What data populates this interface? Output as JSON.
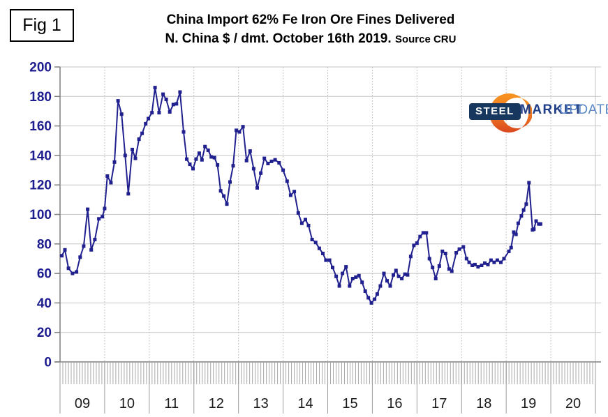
{
  "fig_label": "Fig 1",
  "title_line1": "China Import 62% Fe Iron Ore Fines Delivered",
  "title_line2": "N. China $ / dmt. October 16th 2019.",
  "title_source": "Source CRU",
  "logo": {
    "steel": "STEEL",
    "market": "MARKET",
    "update": "UPDATE"
  },
  "colors": {
    "series": "#20208e",
    "ytick_label": "#1c1c8e",
    "xtick_label": "#1a1a1a",
    "grid_h": "#c4c4c4",
    "grid_v_dotted": "#b4b4b4",
    "axis": "#7f7f7f",
    "logo_navy": "#17375e",
    "logo_blue": "#1f3c87",
    "logo_lightblue": "#5b87c5",
    "logo_orange_top": "#f7941e",
    "logo_orange_bottom": "#d9481e"
  },
  "chart_data": {
    "type": "line",
    "title": "China Import 62% Fe Iron Ore Fines Delivered N. China $ / dmt.",
    "as_of": "October 16th 2019",
    "source": "CRU",
    "xlabel": "",
    "ylabel": "$ / dmt",
    "ylim": [
      0,
      200
    ],
    "ytick_step": 20,
    "yticks": [
      "200",
      "180",
      "160",
      "140",
      "120",
      "100",
      "80",
      "60",
      "40",
      "20",
      "0"
    ],
    "xticks": [
      "09",
      "10",
      "11",
      "12",
      "13",
      "14",
      "15",
      "16",
      "17",
      "18",
      "19",
      "20"
    ],
    "xrange_years": [
      2009,
      2021
    ],
    "grid": {
      "horizontal": "solid",
      "vertical": "dotted"
    },
    "legend_position": "none",
    "series": [
      {
        "name": "China import 62% Fe iron ore fines, $/dmt",
        "color": "#20208e",
        "marker": "square",
        "points": [
          [
            2009.04,
            72
          ],
          [
            2009.11,
            76
          ],
          [
            2009.19,
            63.5
          ],
          [
            2009.28,
            60
          ],
          [
            2009.37,
            61
          ],
          [
            2009.45,
            71
          ],
          [
            2009.53,
            78.5
          ],
          [
            2009.62,
            103.5
          ],
          [
            2009.7,
            76
          ],
          [
            2009.78,
            83
          ],
          [
            2009.87,
            97
          ],
          [
            2009.95,
            98.5
          ],
          [
            2010.0,
            104
          ],
          [
            2010.06,
            126
          ],
          [
            2010.14,
            121.5
          ],
          [
            2010.22,
            135.5
          ],
          [
            2010.3,
            177
          ],
          [
            2010.38,
            168
          ],
          [
            2010.46,
            140
          ],
          [
            2010.53,
            114
          ],
          [
            2010.62,
            144
          ],
          [
            2010.69,
            138
          ],
          [
            2010.77,
            151
          ],
          [
            2010.84,
            155
          ],
          [
            2010.92,
            161.5
          ],
          [
            2010.98,
            165
          ],
          [
            2011.06,
            169
          ],
          [
            2011.13,
            186
          ],
          [
            2011.22,
            169
          ],
          [
            2011.31,
            181.5
          ],
          [
            2011.38,
            178
          ],
          [
            2011.46,
            169.5
          ],
          [
            2011.54,
            174.5
          ],
          [
            2011.61,
            175
          ],
          [
            2011.69,
            183
          ],
          [
            2011.77,
            156
          ],
          [
            2011.84,
            137.5
          ],
          [
            2011.91,
            134
          ],
          [
            2011.98,
            131
          ],
          [
            2012.05,
            137.5
          ],
          [
            2012.12,
            141.5
          ],
          [
            2012.18,
            137
          ],
          [
            2012.25,
            146
          ],
          [
            2012.32,
            143.5
          ],
          [
            2012.39,
            139
          ],
          [
            2012.46,
            138.5
          ],
          [
            2012.53,
            133.5
          ],
          [
            2012.6,
            116
          ],
          [
            2012.67,
            112.5
          ],
          [
            2012.74,
            107
          ],
          [
            2012.81,
            122
          ],
          [
            2012.88,
            133
          ],
          [
            2012.95,
            157
          ],
          [
            2013.02,
            156
          ],
          [
            2013.1,
            159.5
          ],
          [
            2013.18,
            136.5
          ],
          [
            2013.26,
            143
          ],
          [
            2013.34,
            131
          ],
          [
            2013.42,
            118
          ],
          [
            2013.5,
            128
          ],
          [
            2013.58,
            138
          ],
          [
            2013.66,
            134.5
          ],
          [
            2013.74,
            136
          ],
          [
            2013.82,
            137
          ],
          [
            2013.91,
            135
          ],
          [
            2014.0,
            130
          ],
          [
            2014.09,
            122.5
          ],
          [
            2014.17,
            113
          ],
          [
            2014.25,
            115.5
          ],
          [
            2014.34,
            101
          ],
          [
            2014.42,
            94
          ],
          [
            2014.5,
            96.5
          ],
          [
            2014.57,
            92.5
          ],
          [
            2014.65,
            83
          ],
          [
            2014.73,
            81
          ],
          [
            2014.81,
            77
          ],
          [
            2014.89,
            73.5
          ],
          [
            2014.96,
            69
          ],
          [
            2015.04,
            69
          ],
          [
            2015.11,
            64
          ],
          [
            2015.19,
            58
          ],
          [
            2015.26,
            51.5
          ],
          [
            2015.33,
            60
          ],
          [
            2015.41,
            64.5
          ],
          [
            2015.49,
            51.5
          ],
          [
            2015.56,
            56.5
          ],
          [
            2015.63,
            57.5
          ],
          [
            2015.7,
            58.5
          ],
          [
            2015.77,
            54
          ],
          [
            2015.84,
            48
          ],
          [
            2015.91,
            43.5
          ],
          [
            2015.98,
            40
          ],
          [
            2016.05,
            42.5
          ],
          [
            2016.11,
            46
          ],
          [
            2016.18,
            51.5
          ],
          [
            2016.26,
            60
          ],
          [
            2016.33,
            55
          ],
          [
            2016.4,
            51.5
          ],
          [
            2016.47,
            59
          ],
          [
            2016.53,
            62
          ],
          [
            2016.59,
            58
          ],
          [
            2016.66,
            56.5
          ],
          [
            2016.73,
            59.5
          ],
          [
            2016.79,
            59
          ],
          [
            2016.86,
            71.5
          ],
          [
            2016.93,
            79
          ],
          [
            2017.0,
            80.5
          ],
          [
            2017.07,
            85
          ],
          [
            2017.14,
            87.5
          ],
          [
            2017.21,
            87.5
          ],
          [
            2017.28,
            70
          ],
          [
            2017.35,
            64
          ],
          [
            2017.42,
            56.5
          ],
          [
            2017.5,
            65
          ],
          [
            2017.57,
            75
          ],
          [
            2017.64,
            73.5
          ],
          [
            2017.72,
            63
          ],
          [
            2017.78,
            61.5
          ],
          [
            2017.88,
            74
          ],
          [
            2017.95,
            76.5
          ],
          [
            2018.04,
            78
          ],
          [
            2018.11,
            70
          ],
          [
            2018.17,
            67.5
          ],
          [
            2018.24,
            65.5
          ],
          [
            2018.3,
            66
          ],
          [
            2018.37,
            64.5
          ],
          [
            2018.45,
            65.5
          ],
          [
            2018.52,
            67
          ],
          [
            2018.59,
            66
          ],
          [
            2018.66,
            69
          ],
          [
            2018.73,
            67.5
          ],
          [
            2018.8,
            69
          ],
          [
            2018.88,
            67.5
          ],
          [
            2018.95,
            70
          ],
          [
            2019.06,
            75
          ],
          [
            2019.11,
            77.5
          ],
          [
            2019.17,
            88
          ],
          [
            2019.22,
            86.5
          ],
          [
            2019.27,
            94
          ],
          [
            2019.34,
            99
          ],
          [
            2019.39,
            103
          ],
          [
            2019.45,
            107
          ],
          [
            2019.51,
            121.5
          ],
          [
            2019.59,
            89.5
          ],
          [
            2019.62,
            90
          ],
          [
            2019.67,
            95.5
          ],
          [
            2019.73,
            93.5
          ],
          [
            2019.77,
            93.5
          ]
        ]
      }
    ]
  }
}
